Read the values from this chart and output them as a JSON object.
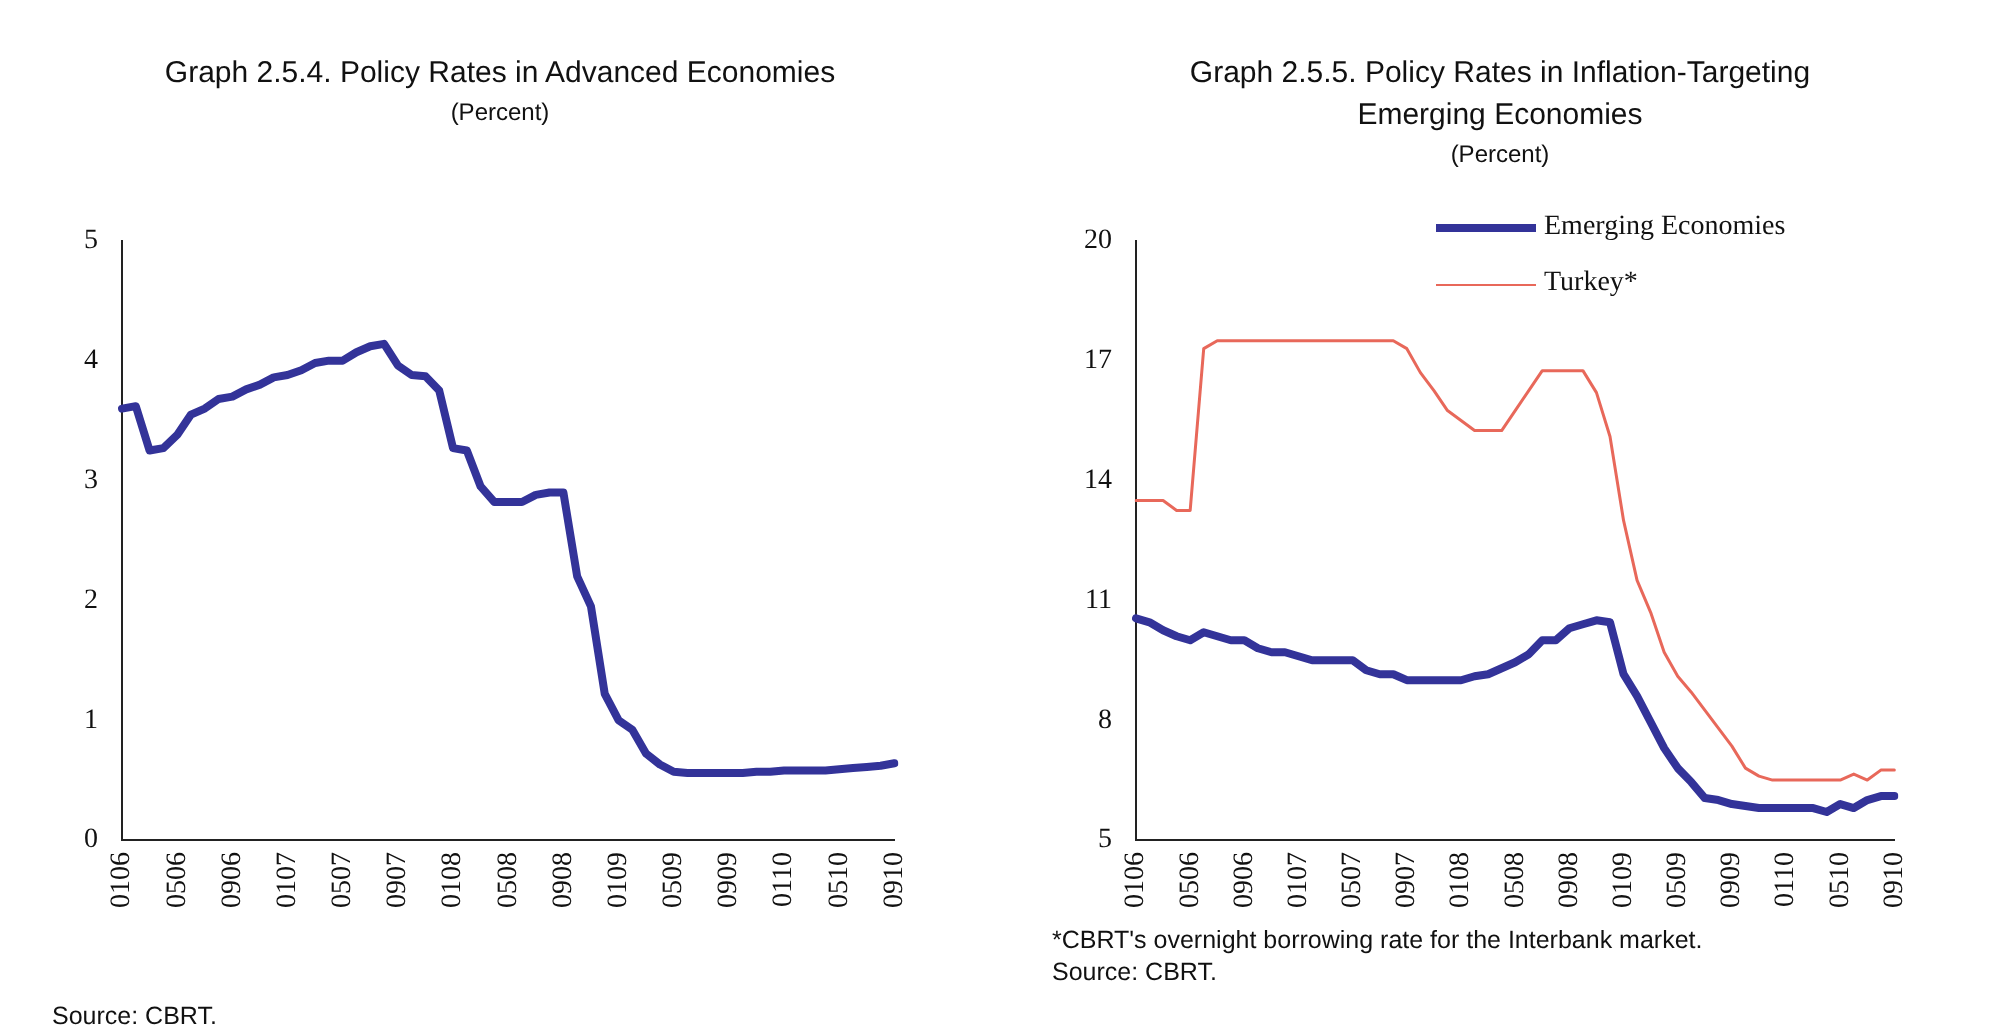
{
  "chart_data": [
    {
      "type": "line",
      "title": "Graph 2.5.4. Policy Rates in Advanced Economies",
      "subtitle": "(Percent)",
      "categories": [
        "0106",
        null,
        null,
        null,
        "0506",
        null,
        null,
        null,
        "0906",
        null,
        null,
        null,
        "0107",
        null,
        null,
        null,
        "0507",
        null,
        null,
        null,
        "0907",
        null,
        null,
        null,
        "0108",
        null,
        null,
        null,
        "0508",
        null,
        null,
        null,
        "0908",
        null,
        null,
        null,
        "0109",
        null,
        null,
        null,
        "0509",
        null,
        null,
        null,
        "0909",
        null,
        null,
        null,
        "0110",
        null,
        null,
        null,
        "0510",
        null,
        null,
        null,
        "0910"
      ],
      "series": [
        {
          "color": "#333399",
          "values": [
            3.6,
            3.62,
            3.25,
            3.27,
            3.38,
            3.55,
            3.6,
            3.68,
            3.7,
            3.76,
            3.8,
            3.86,
            3.88,
            3.92,
            3.98,
            4.0,
            4.0,
            4.07,
            4.12,
            4.14,
            3.96,
            3.88,
            3.87,
            3.75,
            3.27,
            3.25,
            2.95,
            2.82,
            2.82,
            2.82,
            2.88,
            2.9,
            2.9,
            2.2,
            1.95,
            1.22,
            1.0,
            0.92,
            0.72,
            0.63,
            0.57,
            0.56,
            0.56,
            0.56,
            0.56,
            0.56,
            0.57,
            0.57,
            0.58,
            0.58,
            0.58,
            0.58,
            0.59,
            0.6,
            0.61,
            0.62,
            0.64
          ]
        }
      ],
      "ylim": [
        0,
        5
      ],
      "yticks": [
        0,
        1,
        2,
        3,
        4,
        5
      ],
      "marker": "none",
      "annotations": [
        "Source: CBRT."
      ]
    },
    {
      "type": "line",
      "title": "Graph 2.5.5. Policy Rates in Inflation-Targeting Emerging Economies",
      "subtitle": "(Percent)",
      "categories": [
        "0106",
        null,
        null,
        null,
        "0506",
        null,
        null,
        null,
        "0906",
        null,
        null,
        null,
        "0107",
        null,
        null,
        null,
        "0507",
        null,
        null,
        null,
        "0907",
        null,
        null,
        null,
        "0108",
        null,
        null,
        null,
        "0508",
        null,
        null,
        null,
        "0908",
        null,
        null,
        null,
        "0109",
        null,
        null,
        null,
        "0509",
        null,
        null,
        null,
        "0909",
        null,
        null,
        null,
        "0110",
        null,
        null,
        null,
        "0510",
        null,
        null,
        null,
        "0910"
      ],
      "series": [
        {
          "name": "Emerging Economies",
          "color": "#333399",
          "values": [
            10.55,
            10.45,
            10.25,
            10.1,
            10.0,
            10.2,
            10.1,
            10.0,
            10.0,
            9.8,
            9.7,
            9.7,
            9.6,
            9.5,
            9.5,
            9.5,
            9.5,
            9.25,
            9.15,
            9.15,
            9.0,
            9.0,
            9.0,
            9.0,
            9.0,
            9.1,
            9.15,
            9.3,
            9.45,
            9.65,
            10.0,
            10.0,
            10.3,
            10.4,
            10.5,
            10.45,
            9.15,
            8.6,
            7.95,
            7.3,
            6.8,
            6.45,
            6.05,
            6.0,
            5.9,
            5.85,
            5.8,
            5.8,
            5.8,
            5.8,
            5.8,
            5.7,
            5.9,
            5.8,
            6.0,
            6.1,
            6.1
          ]
        },
        {
          "name": "Turkey*",
          "color": "#e8685a",
          "values": [
            13.5,
            13.5,
            13.5,
            13.25,
            13.25,
            17.3,
            17.5,
            17.5,
            17.5,
            17.5,
            17.5,
            17.5,
            17.5,
            17.5,
            17.5,
            17.5,
            17.5,
            17.5,
            17.5,
            17.5,
            17.3,
            16.7,
            16.25,
            15.75,
            15.5,
            15.25,
            15.25,
            15.25,
            15.75,
            16.25,
            16.75,
            16.75,
            16.75,
            16.75,
            16.2,
            15.1,
            13.0,
            11.5,
            10.7,
            9.7,
            9.1,
            8.7,
            8.25,
            7.8,
            7.35,
            6.8,
            6.6,
            6.5,
            6.5,
            6.5,
            6.5,
            6.5,
            6.5,
            6.65,
            6.5,
            6.75,
            6.75
          ]
        }
      ],
      "ylim": [
        5,
        20
      ],
      "yticks": [
        5,
        8,
        11,
        14,
        17,
        20
      ],
      "marker": "none",
      "legend": "top right",
      "annotations": [
        "*CBRT's overnight borrowing rate for the Interbank market.",
        "Source: CBRT."
      ]
    }
  ]
}
